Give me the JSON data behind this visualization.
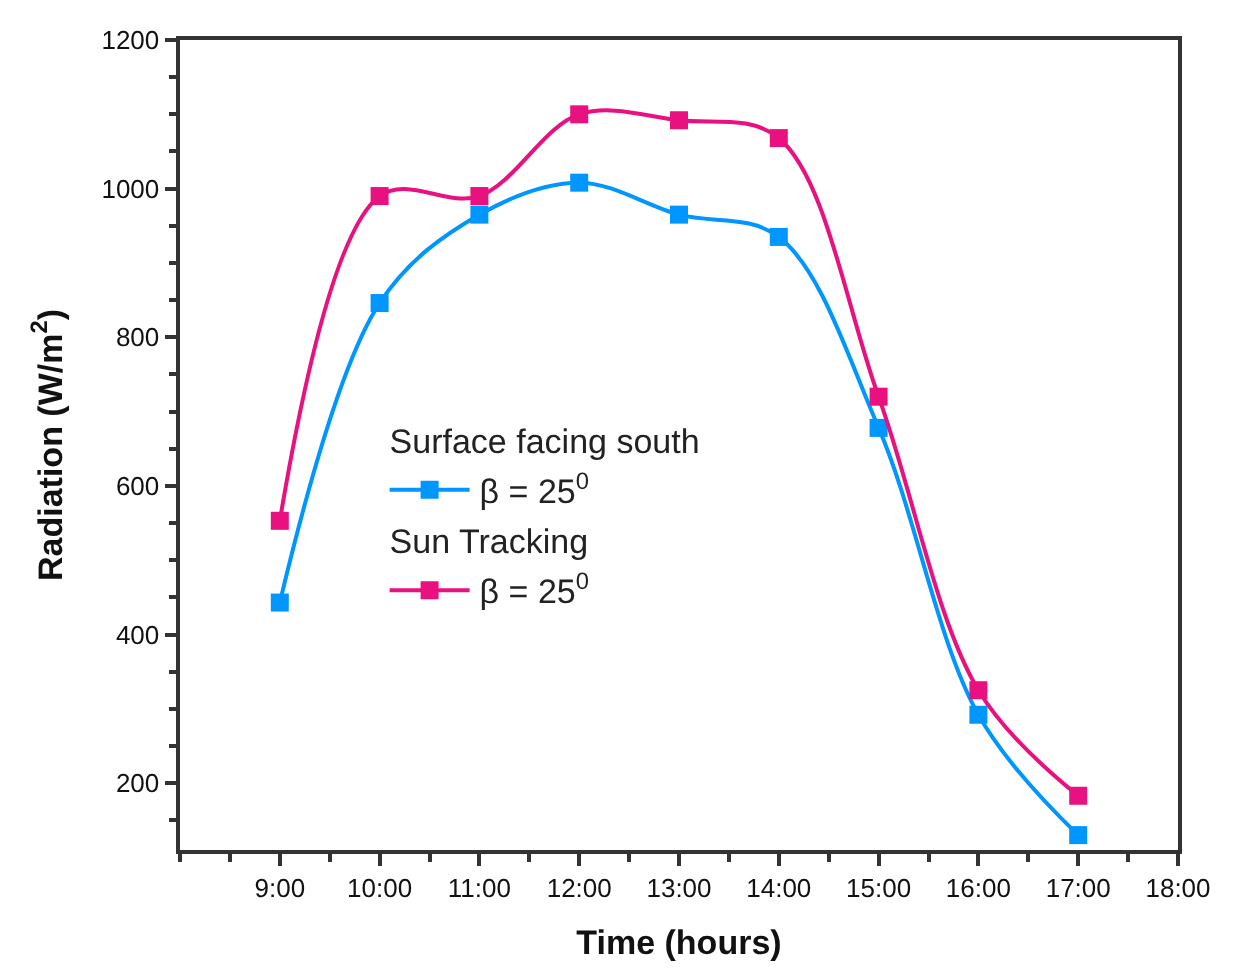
{
  "chart_data": {
    "type": "line",
    "xlabel": "Time (hours)",
    "ylabel": "Radiation (W/m$^{2}$)",
    "x": [
      9,
      10,
      11,
      12,
      13,
      14,
      15,
      16,
      17
    ],
    "series": [
      {
        "name": "β = 25$^{0}$",
        "color": "#0096ff",
        "values": [
          443,
          846,
          965,
          1008,
          965,
          935,
          678,
          292,
          130
        ]
      },
      {
        "name": "β = 25$^{0}$",
        "color": "#e8117f",
        "values": [
          553,
          990,
          990,
          1100,
          1092,
          1068,
          720,
          325,
          183
        ]
      }
    ],
    "annotations": [
      "Surface facing south",
      "Sun Tracking"
    ],
    "xlim": [
      8,
      18
    ],
    "ylim": [
      110,
      1200
    ],
    "xticks": [
      {
        "value": 9,
        "label": "9:00"
      },
      {
        "value": 10,
        "label": "10:00"
      },
      {
        "value": 11,
        "label": "11:00"
      },
      {
        "value": 12,
        "label": "12:00"
      },
      {
        "value": 13,
        "label": "13:00"
      },
      {
        "value": 14,
        "label": "14:00"
      },
      {
        "value": 15,
        "label": "15:00"
      },
      {
        "value": 16,
        "label": "16:00"
      },
      {
        "value": 17,
        "label": "17:00"
      },
      {
        "value": 18,
        "label": "18:00"
      }
    ],
    "yticks": [
      200,
      400,
      600,
      800,
      1000,
      1200
    ],
    "legend": "left",
    "marker": "square",
    "line_style": "solid"
  }
}
